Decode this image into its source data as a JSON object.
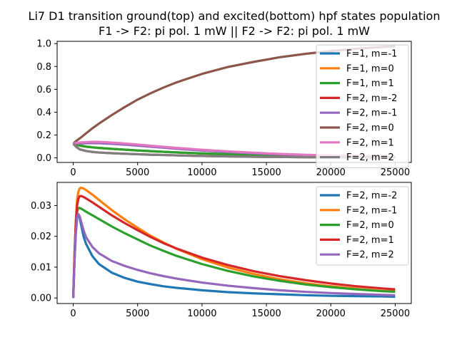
{
  "figure": {
    "title_line1": "Li7 D1 transition ground(top) and excited(bottom)  hpf states population",
    "title_line2": "F1 -> F2: pi pol.  1 mW || F2 -> F2: pi pol.  1 mW"
  },
  "chart_data": [
    {
      "type": "line",
      "panel": "top",
      "title": "",
      "xlabel": "",
      "ylabel": "",
      "xlim": [
        -1250,
        26250
      ],
      "ylim": [
        -0.04,
        1.02
      ],
      "xticks": [
        0,
        5000,
        10000,
        15000,
        20000,
        25000
      ],
      "xtick_labels": [
        "0",
        "5000",
        "10000",
        "15000",
        "20000",
        "25000"
      ],
      "yticks": [
        0.0,
        0.2,
        0.4,
        0.6,
        0.8,
        1.0
      ],
      "ytick_labels": [
        "0.0",
        "0.2",
        "0.4",
        "0.6",
        "0.8",
        "1.0"
      ],
      "grid": false,
      "legend_position": "right",
      "x": [
        0,
        250,
        500,
        1000,
        1500,
        2000,
        3000,
        4000,
        5000,
        6000,
        7000,
        8000,
        10000,
        12000,
        14000,
        16000,
        18000,
        20000,
        22000,
        24000,
        25000
      ],
      "series": [
        {
          "name": "F=1, m=-1",
          "color": "#1f77b4",
          "values": [
            0.125,
            0.115,
            0.108,
            0.098,
            0.092,
            0.087,
            0.079,
            0.072,
            0.065,
            0.059,
            0.053,
            0.048,
            0.039,
            0.032,
            0.026,
            0.021,
            0.017,
            0.014,
            0.011,
            0.009,
            0.008
          ]
        },
        {
          "name": "F=1, m=0",
          "color": "#ff7f0e",
          "values": [
            0.125,
            0.115,
            0.108,
            0.098,
            0.092,
            0.087,
            0.079,
            0.072,
            0.065,
            0.059,
            0.053,
            0.048,
            0.039,
            0.032,
            0.026,
            0.021,
            0.017,
            0.014,
            0.011,
            0.009,
            0.008
          ]
        },
        {
          "name": "F=1, m=1",
          "color": "#2ca02c",
          "values": [
            0.125,
            0.115,
            0.108,
            0.098,
            0.092,
            0.087,
            0.079,
            0.072,
            0.065,
            0.059,
            0.053,
            0.048,
            0.039,
            0.032,
            0.026,
            0.021,
            0.017,
            0.014,
            0.011,
            0.009,
            0.008
          ]
        },
        {
          "name": "F=2, m=-2",
          "color": "#d62728",
          "values": [
            0.125,
            0.095,
            0.075,
            0.06,
            0.052,
            0.047,
            0.041,
            0.036,
            0.032,
            0.028,
            0.025,
            0.022,
            0.017,
            0.013,
            0.01,
            0.008,
            0.006,
            0.005,
            0.004,
            0.003,
            0.003
          ]
        },
        {
          "name": "F=2, m=-1",
          "color": "#9467bd",
          "values": [
            0.125,
            0.125,
            0.126,
            0.128,
            0.129,
            0.128,
            0.123,
            0.116,
            0.107,
            0.098,
            0.089,
            0.08,
            0.064,
            0.051,
            0.04,
            0.031,
            0.024,
            0.019,
            0.015,
            0.011,
            0.01
          ]
        },
        {
          "name": "F=2, m=0",
          "color": "#8c564b",
          "values": [
            0.125,
            0.15,
            0.17,
            0.215,
            0.26,
            0.3,
            0.375,
            0.445,
            0.51,
            0.565,
            0.615,
            0.66,
            0.735,
            0.795,
            0.84,
            0.88,
            0.91,
            0.935,
            0.955,
            0.97,
            0.977
          ]
        },
        {
          "name": "F=2, m=1",
          "color": "#e377c2",
          "values": [
            0.125,
            0.131,
            0.135,
            0.138,
            0.141,
            0.14,
            0.134,
            0.126,
            0.117,
            0.107,
            0.097,
            0.088,
            0.071,
            0.057,
            0.045,
            0.035,
            0.027,
            0.021,
            0.016,
            0.012,
            0.011
          ]
        },
        {
          "name": "F=2, m=2",
          "color": "#7f7f7f",
          "values": [
            0.125,
            0.095,
            0.075,
            0.06,
            0.052,
            0.047,
            0.041,
            0.036,
            0.032,
            0.028,
            0.025,
            0.022,
            0.017,
            0.013,
            0.01,
            0.008,
            0.006,
            0.005,
            0.004,
            0.003,
            0.003
          ]
        }
      ]
    },
    {
      "type": "line",
      "panel": "bottom",
      "title": "",
      "xlabel": "",
      "ylabel": "",
      "xlim": [
        -1250,
        26250
      ],
      "ylim": [
        -0.0018,
        0.0375
      ],
      "xticks": [
        0,
        5000,
        10000,
        15000,
        20000,
        25000
      ],
      "xtick_labels": [
        "0",
        "5000",
        "10000",
        "15000",
        "20000",
        "25000"
      ],
      "yticks": [
        0.0,
        0.01,
        0.02,
        0.03
      ],
      "ytick_labels": [
        "0.00",
        "0.01",
        "0.02",
        "0.03"
      ],
      "grid": false,
      "legend_position": "top-right",
      "x": [
        0,
        100,
        200,
        300,
        400,
        500,
        600,
        800,
        1000,
        1500,
        2000,
        3000,
        4000,
        5000,
        6000,
        7000,
        8000,
        10000,
        12000,
        14000,
        16000,
        18000,
        20000,
        22000,
        24000,
        25000
      ],
      "series": [
        {
          "name": "F=2, m=-2",
          "color": "#1f77b4",
          "values": [
            0,
            0.012,
            0.021,
            0.026,
            0.027,
            0.026,
            0.024,
            0.02,
            0.0175,
            0.0135,
            0.011,
            0.0082,
            0.0065,
            0.0053,
            0.0045,
            0.0038,
            0.0033,
            0.0025,
            0.0019,
            0.0015,
            0.0012,
            0.0009,
            0.0007,
            0.0006,
            0.0005,
            0.0004
          ]
        },
        {
          "name": "F=2, m=-1",
          "color": "#ff7f0e",
          "values": [
            0,
            0.014,
            0.025,
            0.032,
            0.0345,
            0.0355,
            0.0358,
            0.0355,
            0.035,
            0.0335,
            0.0318,
            0.0285,
            0.0255,
            0.0228,
            0.0202,
            0.018,
            0.016,
            0.0126,
            0.0099,
            0.0078,
            0.0061,
            0.0048,
            0.0038,
            0.003,
            0.0023,
            0.0021
          ]
        },
        {
          "name": "F=2, m=0",
          "color": "#2ca02c",
          "values": [
            0,
            0.013,
            0.023,
            0.028,
            0.0292,
            0.0292,
            0.029,
            0.0285,
            0.028,
            0.0268,
            0.0256,
            0.0232,
            0.021,
            0.019,
            0.017,
            0.0153,
            0.0137,
            0.011,
            0.0088,
            0.007,
            0.0056,
            0.0044,
            0.0035,
            0.0028,
            0.0022,
            0.002
          ]
        },
        {
          "name": "F=2, m=1",
          "color": "#d62728",
          "values": [
            0,
            0.014,
            0.024,
            0.03,
            0.0322,
            0.033,
            0.0331,
            0.0328,
            0.0323,
            0.031,
            0.0296,
            0.0268,
            0.0243,
            0.022,
            0.0198,
            0.0178,
            0.0161,
            0.0131,
            0.0107,
            0.0087,
            0.0071,
            0.0058,
            0.0047,
            0.0038,
            0.0031,
            0.0028
          ]
        },
        {
          "name": "F=2, m=2",
          "color": "#9467bd",
          "values": [
            0,
            0.012,
            0.021,
            0.026,
            0.0272,
            0.0265,
            0.025,
            0.022,
            0.0197,
            0.0165,
            0.0145,
            0.012,
            0.0104,
            0.0091,
            0.008,
            0.0071,
            0.0063,
            0.005,
            0.004,
            0.0032,
            0.0025,
            0.002,
            0.0016,
            0.0013,
            0.001,
            0.0009
          ]
        }
      ]
    }
  ]
}
